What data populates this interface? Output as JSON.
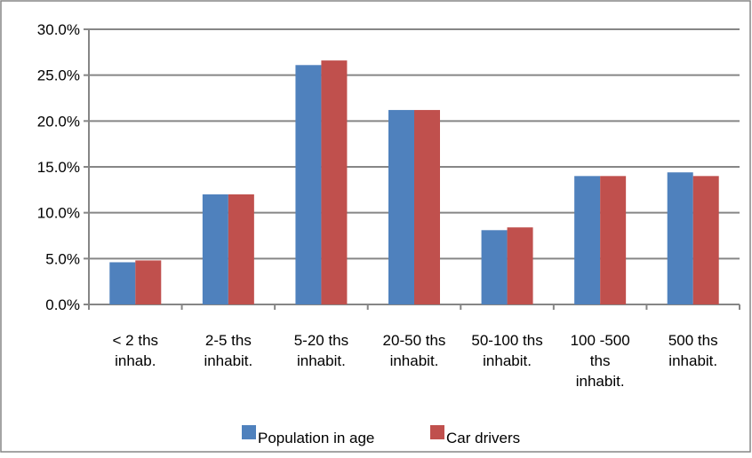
{
  "chart_data": {
    "type": "bar",
    "title": "",
    "xlabel": "",
    "ylabel": "",
    "ylim": [
      0,
      30
    ],
    "yticks": [
      0,
      5,
      10,
      15,
      20,
      25,
      30
    ],
    "ytick_labels": [
      "0.0%",
      "5.0%",
      "10.0%",
      "15.0%",
      "20.0%",
      "25.0%",
      "30.0%"
    ],
    "grid": true,
    "legend_position": "bottom",
    "categories": [
      [
        "< 2 ths",
        "inhab."
      ],
      [
        "2-5 ths",
        "inhabit."
      ],
      [
        "5-20 ths",
        "inhabit."
      ],
      [
        "20-50 ths",
        "inhabit."
      ],
      [
        "50-100 ths",
        "inhabit."
      ],
      [
        "100 -500",
        "ths",
        "inhabit."
      ],
      [
        "500 ths",
        "inhabit."
      ]
    ],
    "series": [
      {
        "name": "Population in age",
        "color": "#4F81BD",
        "values": [
          4.6,
          12.0,
          26.1,
          21.2,
          8.1,
          14.0,
          14.4
        ]
      },
      {
        "name": "Car drivers",
        "color": "#C0504D",
        "values": [
          4.8,
          12.0,
          26.6,
          21.2,
          8.4,
          14.0,
          14.0
        ]
      }
    ]
  }
}
